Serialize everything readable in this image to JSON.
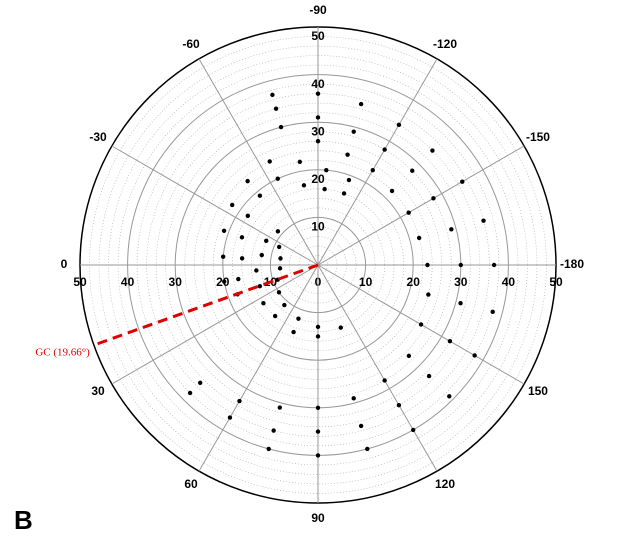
{
  "chart_data": {
    "type": "scatter",
    "polar": true,
    "panel_label": "B",
    "xlim": [
      -180,
      180
    ],
    "xticks": [
      -180,
      -150,
      -120,
      -90,
      -60,
      -30,
      0,
      30,
      60,
      90,
      120,
      150
    ],
    "ylim": [
      0,
      50
    ],
    "yticks": [
      0,
      10,
      20,
      30,
      40,
      50
    ],
    "minor_step": 2,
    "grid": true,
    "annotation": {
      "label": "GC (19.66°)",
      "value": 19.66,
      "color": "#e00000"
    },
    "series": [
      {
        "color": "#000000",
        "x": [
          -75,
          -75,
          -75,
          -90,
          -90,
          -90,
          -105,
          -105,
          -105,
          -120,
          -120,
          -120,
          -135,
          -135,
          -135,
          -150,
          -150,
          -150,
          -165,
          -165,
          -165,
          -180,
          -180,
          -180,
          165,
          165,
          165,
          150,
          150,
          150,
          135,
          135,
          135,
          120,
          120,
          120,
          105,
          105,
          105,
          90,
          90,
          90,
          75,
          75,
          75,
          60,
          60,
          45,
          45,
          -110,
          -110,
          -95,
          -95,
          -80,
          -80,
          -65,
          -65,
          -50,
          -50,
          -35,
          -35,
          -20,
          -20,
          -5,
          -5,
          10,
          10,
          20,
          -40,
          -25,
          -25,
          -10,
          -10,
          5,
          5,
          20,
          20,
          35,
          35,
          50,
          50,
          70,
          70,
          90,
          90,
          110
        ],
        "values": [
          30,
          34,
          37,
          26,
          31,
          36,
          24,
          29,
          35,
          23,
          28,
          34,
          22,
          28,
          34,
          22,
          28,
          35,
          22,
          29,
          36,
          23,
          30,
          37,
          24,
          31,
          38,
          25,
          32,
          38,
          27,
          33,
          39,
          28,
          34,
          40,
          29,
          35,
          40,
          30,
          35,
          40,
          31,
          36,
          40,
          33,
          37,
          35,
          38,
          16,
          19,
          16,
          20,
          17,
          22,
          20,
          24,
          19,
          23,
          18,
          22,
          17,
          21,
          16,
          20,
          17,
          20,
          18,
          11,
          9,
          12,
          8,
          12,
          8,
          13,
          9,
          13,
          10,
          14,
          11,
          14,
          12,
          15,
          13,
          15,
          14
        ]
      }
    ]
  }
}
